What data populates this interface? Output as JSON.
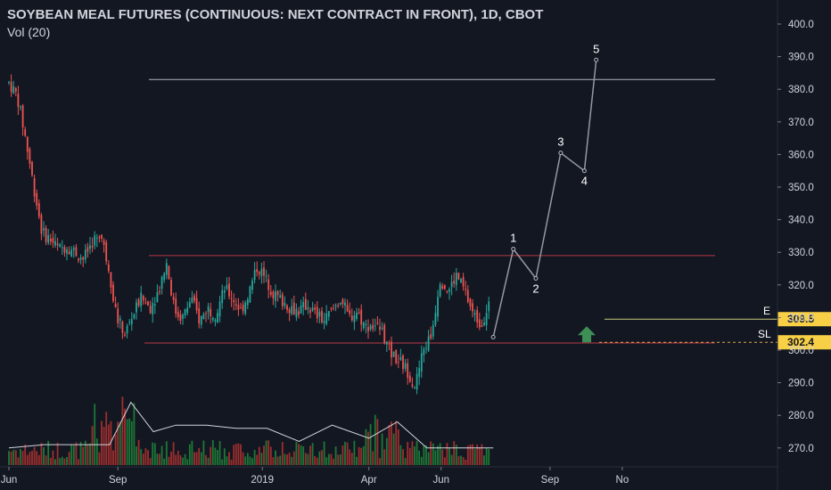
{
  "header": {
    "title": "SOYBEAN MEAL FUTURES (CONTINUOUS: NEXT CONTRACT IN FRONT), 1D, CBOT",
    "volume_label": "Vol (20)"
  },
  "colors": {
    "background": "#131722",
    "up_candle": "#26a69a",
    "down_candle": "#ef5350",
    "volume_up": "#1f8a3a",
    "volume_down": "#b7322f",
    "range_lines": "#b53a44",
    "entry_line": "#c7c77a",
    "stop_line": "#e0a84a",
    "badge": "#f7d046",
    "arrow": "#3e8f55",
    "projection": "#9598a1"
  },
  "chart_data": {
    "type": "candlestick",
    "title": "SOYBEAN MEAL FUTURES (CONTINUOUS: NEXT CONTRACT IN FRONT), 1D, CBOT",
    "ylim": [
      265,
      405
    ],
    "y_ticks": [
      "270.0",
      "280.0",
      "290.0",
      "300.0",
      "310.0",
      "320.0",
      "330.0",
      "340.0",
      "350.0",
      "360.0",
      "370.0",
      "380.0",
      "390.0",
      "400.0"
    ],
    "x_ticks": [
      "Jun",
      "Sep",
      "2019",
      "Apr",
      "Jun",
      "Sep",
      "No"
    ],
    "price_path": [
      {
        "date": "2018-06-01",
        "price": 382
      },
      {
        "date": "2018-06-08",
        "price": 378
      },
      {
        "date": "2018-06-15",
        "price": 365
      },
      {
        "date": "2018-06-22",
        "price": 350
      },
      {
        "date": "2018-06-29",
        "price": 336
      },
      {
        "date": "2018-07-06",
        "price": 334
      },
      {
        "date": "2018-07-13",
        "price": 331
      },
      {
        "date": "2018-07-20",
        "price": 332
      },
      {
        "date": "2018-07-27",
        "price": 330
      },
      {
        "date": "2018-08-03",
        "price": 328
      },
      {
        "date": "2018-08-10",
        "price": 333
      },
      {
        "date": "2018-08-17",
        "price": 336
      },
      {
        "date": "2018-08-24",
        "price": 326
      },
      {
        "date": "2018-08-31",
        "price": 310
      },
      {
        "date": "2018-09-07",
        "price": 305
      },
      {
        "date": "2018-09-14",
        "price": 311
      },
      {
        "date": "2018-09-21",
        "price": 316
      },
      {
        "date": "2018-09-28",
        "price": 313
      },
      {
        "date": "2018-10-05",
        "price": 318
      },
      {
        "date": "2018-10-12",
        "price": 327
      },
      {
        "date": "2018-10-19",
        "price": 312
      },
      {
        "date": "2018-10-26",
        "price": 310
      },
      {
        "date": "2018-11-02",
        "price": 316
      },
      {
        "date": "2018-11-09",
        "price": 309
      },
      {
        "date": "2018-11-16",
        "price": 313
      },
      {
        "date": "2018-11-23",
        "price": 311
      },
      {
        "date": "2018-11-30",
        "price": 319
      },
      {
        "date": "2018-12-07",
        "price": 316
      },
      {
        "date": "2018-12-14",
        "price": 312
      },
      {
        "date": "2018-12-21",
        "price": 318
      },
      {
        "date": "2018-12-28",
        "price": 326
      },
      {
        "date": "2019-01-11",
        "price": 317
      },
      {
        "date": "2019-01-18",
        "price": 315
      },
      {
        "date": "2019-01-25",
        "price": 313
      },
      {
        "date": "2019-02-01",
        "price": 312
      },
      {
        "date": "2019-02-08",
        "price": 314
      },
      {
        "date": "2019-02-15",
        "price": 311
      },
      {
        "date": "2019-02-22",
        "price": 309
      },
      {
        "date": "2019-03-01",
        "price": 312
      },
      {
        "date": "2019-03-08",
        "price": 316
      },
      {
        "date": "2019-03-15",
        "price": 310
      },
      {
        "date": "2019-03-22",
        "price": 312
      },
      {
        "date": "2019-03-29",
        "price": 307
      },
      {
        "date": "2019-04-05",
        "price": 308
      },
      {
        "date": "2019-04-12",
        "price": 306
      },
      {
        "date": "2019-04-19",
        "price": 299
      },
      {
        "date": "2019-04-26",
        "price": 297
      },
      {
        "date": "2019-05-03",
        "price": 294
      },
      {
        "date": "2019-05-10",
        "price": 289
      },
      {
        "date": "2019-05-17",
        "price": 300
      },
      {
        "date": "2019-05-24",
        "price": 305
      },
      {
        "date": "2019-05-31",
        "price": 322
      },
      {
        "date": "2019-06-07",
        "price": 318
      },
      {
        "date": "2019-06-14",
        "price": 323
      },
      {
        "date": "2019-06-21",
        "price": 318
      },
      {
        "date": "2019-06-28",
        "price": 311
      },
      {
        "date": "2019-07-05",
        "price": 308
      },
      {
        "date": "2019-07-12",
        "price": 315
      }
    ],
    "volume_ma": [
      {
        "date": "2018-06-01",
        "volume_ma_y": 270
      },
      {
        "date": "2018-07-01",
        "volume_ma_y": 271
      },
      {
        "date": "2018-08-01",
        "volume_ma_y": 271
      },
      {
        "date": "2018-08-25",
        "volume_ma_y": 271
      },
      {
        "date": "2018-09-12",
        "volume_ma_y": 284
      },
      {
        "date": "2018-10-01",
        "volume_ma_y": 275
      },
      {
        "date": "2018-10-20",
        "volume_ma_y": 277
      },
      {
        "date": "2018-11-15",
        "volume_ma_y": 277
      },
      {
        "date": "2018-12-10",
        "volume_ma_y": 276
      },
      {
        "date": "2019-01-05",
        "volume_ma_y": 276
      },
      {
        "date": "2019-02-01",
        "volume_ma_y": 272
      },
      {
        "date": "2019-03-01",
        "volume_ma_y": 277
      },
      {
        "date": "2019-04-01",
        "volume_ma_y": 273
      },
      {
        "date": "2019-04-25",
        "volume_ma_y": 278
      },
      {
        "date": "2019-05-20",
        "volume_ma_y": 270
      },
      {
        "date": "2019-06-20",
        "volume_ma_y": 270
      },
      {
        "date": "2019-07-15",
        "volume_ma_y": 270
      }
    ],
    "horizontal_lines": [
      {
        "name": "range-top",
        "y": 329
      },
      {
        "name": "range-bottom",
        "y": 302.2
      },
      {
        "name": "target-line",
        "y": 383
      }
    ],
    "entry": {
      "label": "E",
      "value": "309.5",
      "y": 309.5
    },
    "stop": {
      "label": "SL",
      "value": "302.4",
      "y": 302.4
    },
    "wave_projection": [
      {
        "label": "",
        "date": "2019-07-15",
        "y": 304
      },
      {
        "label": "1",
        "date": "2019-08-01",
        "y": 331
      },
      {
        "label": "2",
        "date": "2019-08-20",
        "y": 322
      },
      {
        "label": "3",
        "date": "2019-09-10",
        "y": 360.5
      },
      {
        "label": "4",
        "date": "2019-09-30",
        "y": 355
      },
      {
        "label": "5",
        "date": "2019-10-10",
        "y": 389
      }
    ]
  }
}
